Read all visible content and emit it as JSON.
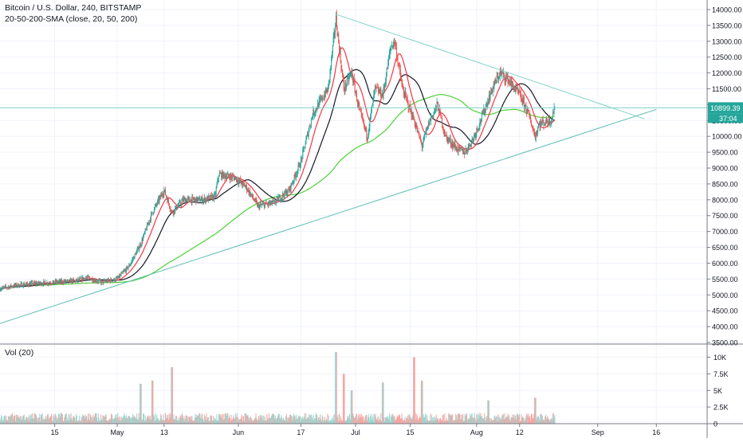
{
  "header": {
    "symbol_line": "Bitcoin / U.S. Dollar, 240, BITSTAMP",
    "indicator_line": "20-50-200-SMA (close, 20, 50, 200)",
    "volume_line": "Vol (20)"
  },
  "colors": {
    "up": "#26a69a",
    "down": "#ef5350",
    "sma20": "#f23645",
    "sma50": "#131722",
    "sma200": "#4cd137",
    "trendline_upper": "#7fd3c9",
    "trendline_lower": "#5fbfb5",
    "price_line": "#7fd3c9",
    "price_badge": "#26a69a",
    "vol_up": "#9ad5cf",
    "vol_down": "#f5a5a3"
  },
  "chart_data": {
    "type": "candlestick",
    "symbol": "BTCUSD",
    "interval": "240",
    "exchange": "BITSTAMP",
    "y_axis": {
      "range": [
        3450,
        14300
      ],
      "ticks": [
        3500,
        4000,
        4500,
        5000,
        5500,
        6000,
        6500,
        7000,
        7500,
        8000,
        8500,
        9000,
        9500,
        10000,
        10500,
        11000,
        11500,
        12000,
        12500,
        13000,
        13500,
        14000
      ],
      "tick_labels": [
        "3500.00",
        "4000.00",
        "4500.00",
        "5000.00",
        "5500.00",
        "6000.00",
        "6500.00",
        "7000.00",
        "7500.00",
        "8000.00",
        "8500.00",
        "9000.00",
        "9500.00",
        "10000.00",
        "10500.00",
        "11000.00",
        "11500.00",
        "12000.00",
        "12500.00",
        "13000.00",
        "13500.00",
        "14000.00"
      ]
    },
    "x_axis": {
      "labels": [
        "15",
        "May",
        "13",
        "Jun",
        "17",
        "Jul",
        "15",
        "Aug",
        "12",
        "Sep",
        "16"
      ],
      "label_days": [
        14,
        30,
        42,
        61,
        77,
        91,
        105,
        122,
        133,
        153,
        168
      ],
      "view_days": [
        0,
        181
      ]
    },
    "volume_axis": {
      "range": [
        0,
        11500
      ],
      "ticks": [
        0,
        2500,
        5000,
        7500,
        10000
      ],
      "tick_labels": [
        "0",
        "2.5K",
        "5K",
        "7.5K",
        "10K"
      ]
    },
    "last_price": 10899.39,
    "last_price_label": "10899.39",
    "countdown_label": "37:04",
    "price_key_points": [
      {
        "day": 0,
        "price": 5200
      },
      {
        "day": 4,
        "price": 5300
      },
      {
        "day": 8,
        "price": 5350
      },
      {
        "day": 14,
        "price": 5400
      },
      {
        "day": 20,
        "price": 5450
      },
      {
        "day": 22,
        "price": 5550
      },
      {
        "day": 26,
        "price": 5400
      },
      {
        "day": 30,
        "price": 5500
      },
      {
        "day": 33,
        "price": 5900
      },
      {
        "day": 36,
        "price": 6600
      },
      {
        "day": 39,
        "price": 7600
      },
      {
        "day": 42,
        "price": 8300
      },
      {
        "day": 44,
        "price": 7600
      },
      {
        "day": 47,
        "price": 8000
      },
      {
        "day": 52,
        "price": 8000
      },
      {
        "day": 55,
        "price": 8100
      },
      {
        "day": 56,
        "price": 8800
      },
      {
        "day": 60,
        "price": 8700
      },
      {
        "day": 63,
        "price": 8400
      },
      {
        "day": 66,
        "price": 7800
      },
      {
        "day": 70,
        "price": 7900
      },
      {
        "day": 74,
        "price": 8300
      },
      {
        "day": 77,
        "price": 9200
      },
      {
        "day": 80,
        "price": 10700
      },
      {
        "day": 84,
        "price": 11500
      },
      {
        "day": 86,
        "price": 13700
      },
      {
        "day": 88,
        "price": 11500
      },
      {
        "day": 90,
        "price": 12000
      },
      {
        "day": 92,
        "price": 10800
      },
      {
        "day": 94,
        "price": 10000
      },
      {
        "day": 96,
        "price": 11500
      },
      {
        "day": 98,
        "price": 11300
      },
      {
        "day": 100,
        "price": 12800
      },
      {
        "day": 101,
        "price": 13000
      },
      {
        "day": 103,
        "price": 11500
      },
      {
        "day": 106,
        "price": 10500
      },
      {
        "day": 108,
        "price": 9700
      },
      {
        "day": 110,
        "price": 10500
      },
      {
        "day": 112,
        "price": 11000
      },
      {
        "day": 114,
        "price": 10000
      },
      {
        "day": 117,
        "price": 9600
      },
      {
        "day": 119,
        "price": 9500
      },
      {
        "day": 121,
        "price": 9900
      },
      {
        "day": 123,
        "price": 10500
      },
      {
        "day": 126,
        "price": 11500
      },
      {
        "day": 128,
        "price": 12000
      },
      {
        "day": 130,
        "price": 11800
      },
      {
        "day": 133,
        "price": 11300
      },
      {
        "day": 135,
        "price": 10800
      },
      {
        "day": 137,
        "price": 10000
      },
      {
        "day": 138,
        "price": 10400
      },
      {
        "day": 141,
        "price": 10500
      },
      {
        "day": 142,
        "price": 10899
      }
    ],
    "volume_profile": {
      "base": 900,
      "spikes": [
        {
          "day": 36,
          "value": 6000
        },
        {
          "day": 39,
          "value": 6500
        },
        {
          "day": 44,
          "value": 8500
        },
        {
          "day": 86,
          "value": 10800
        },
        {
          "day": 88,
          "value": 7500
        },
        {
          "day": 90,
          "value": 5000
        },
        {
          "day": 98,
          "value": 6200
        },
        {
          "day": 106,
          "value": 10000
        },
        {
          "day": 108,
          "value": 6500
        },
        {
          "day": 125,
          "value": 3500
        },
        {
          "day": 137,
          "value": 3900
        }
      ]
    },
    "trendlines": [
      {
        "name": "upper",
        "from": {
          "day": 86,
          "price": 13850
        },
        "to": {
          "day": 165,
          "price": 10550
        }
      },
      {
        "name": "lower",
        "from": {
          "day": 0,
          "price": 4100
        },
        "to": {
          "day": 168,
          "price": 10850
        }
      }
    ],
    "sma_periods": [
      20,
      50,
      200
    ]
  }
}
